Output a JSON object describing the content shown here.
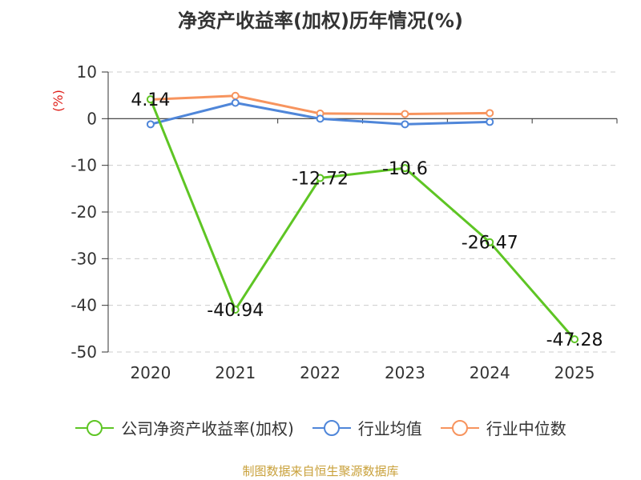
{
  "chart_data": {
    "type": "line",
    "title": "净资产收益率(加权)历年情况(%)",
    "ylabel": "(%)",
    "xlabel": "",
    "categories": [
      "2020",
      "2021",
      "2022",
      "2023",
      "2024",
      "2025"
    ],
    "ylim": [
      -50,
      10
    ],
    "yticks": [
      10,
      0,
      -10,
      -20,
      -30,
      -40,
      -50
    ],
    "grid": true,
    "legend_position": "bottom",
    "series": [
      {
        "name": "公司净资产收益率(加权)",
        "color": "#5ec524",
        "values": [
          4.14,
          -40.94,
          -12.72,
          -10.6,
          -26.47,
          -47.28
        ],
        "labels": [
          "4.14",
          "-40.94",
          "-12.72",
          "-10.6",
          "-26.47",
          "-47.28"
        ]
      },
      {
        "name": "行业均值",
        "color": "#4f86d9",
        "values": [
          -1.2,
          3.4,
          0.0,
          -1.2,
          -0.7,
          null
        ]
      },
      {
        "name": "行业中位数",
        "color": "#f7945e",
        "values": [
          4.1,
          4.9,
          1.1,
          1.0,
          1.2,
          null
        ]
      }
    ]
  },
  "source": "制图数据来自恒生聚源数据库"
}
